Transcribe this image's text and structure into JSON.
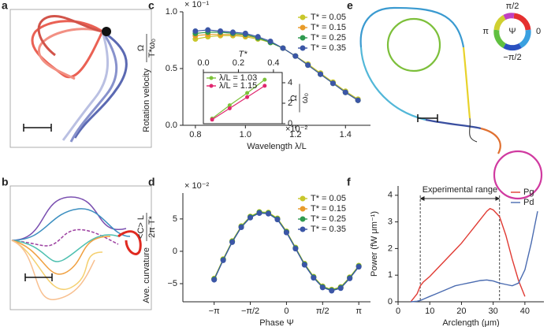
{
  "panel_labels": [
    "a",
    "b",
    "c",
    "d",
    "e",
    "f"
  ],
  "wheel": {
    "labels": [
      "π/2",
      "π",
      "0",
      "−π/2"
    ],
    "symbol": "Ψ"
  },
  "chart_data": [
    {
      "type": "line",
      "markers": true,
      "legend": "upper right",
      "xlabel": "Wavelength λ/L",
      "ylabel": "Rotation velocity",
      "ylabel_numerator": "Ω",
      "ylabel_denominator": "T*ω₀",
      "y_multiplier": "× 10⁻¹",
      "x": [
        0.8,
        0.85,
        0.9,
        0.95,
        1.0,
        1.05,
        1.1,
        1.15,
        1.2,
        1.25,
        1.3,
        1.35,
        1.4,
        1.45
      ],
      "series": [
        {
          "name": "T* = 0.05",
          "color": "#c8c72b",
          "values": [
            0.76,
            0.78,
            0.79,
            0.79,
            0.78,
            0.76,
            0.73,
            0.68,
            0.61,
            0.54,
            0.46,
            0.38,
            0.3,
            0.23
          ]
        },
        {
          "name": "T* = 0.15",
          "color": "#e89b2a",
          "values": [
            0.79,
            0.8,
            0.8,
            0.8,
            0.79,
            0.77,
            0.73,
            0.68,
            0.61,
            0.53,
            0.45,
            0.37,
            0.29,
            0.22
          ]
        },
        {
          "name": "T* = 0.25",
          "color": "#2f9a4f",
          "values": [
            0.81,
            0.82,
            0.82,
            0.81,
            0.8,
            0.77,
            0.73,
            0.68,
            0.61,
            0.53,
            0.45,
            0.37,
            0.29,
            0.22
          ]
        },
        {
          "name": "T* = 0.35",
          "color": "#3b56a6",
          "values": [
            0.83,
            0.84,
            0.83,
            0.82,
            0.81,
            0.78,
            0.74,
            0.68,
            0.61,
            0.53,
            0.45,
            0.37,
            0.29,
            0.22
          ]
        }
      ],
      "xlim": [
        0.75,
        1.5
      ],
      "ylim": [
        0,
        1
      ],
      "xticks": [
        {
          "value": 0.8,
          "label": "0.8"
        },
        {
          "value": 1.0,
          "label": "1.0"
        },
        {
          "value": 1.2,
          "label": "1.2"
        },
        {
          "value": 1.4,
          "label": "1.4"
        }
      ],
      "yticks": [
        {
          "value": 0,
          "label": "0.0"
        },
        0.5,
        {
          "value": 1,
          "label": "1.0"
        }
      ]
    },
    {
      "type": "line",
      "markers": true,
      "legend": "upper left",
      "xlabel": "T*",
      "ylabel_numerator": "Ω",
      "ylabel_denominator": "ω₀",
      "y_multiplier": "×10⁻²",
      "x": [
        0.05,
        0.15,
        0.25,
        0.35
      ],
      "series": [
        {
          "name": "λ/L = 1.03",
          "color": "#7cc23a",
          "values": [
            0.5,
            1.8,
            3.0,
            4.3
          ]
        },
        {
          "name": "λ/L = 1.15",
          "color": "#e0266e",
          "values": [
            0.4,
            1.5,
            2.6,
            3.7
          ]
        }
      ],
      "xlim": [
        0,
        0.45
      ],
      "ylim": [
        0,
        5
      ],
      "xticks": [
        {
          "value": 0,
          "label": "0.0"
        },
        0.2,
        0.4
      ],
      "yticks": [
        0,
        2,
        4
      ]
    },
    {
      "type": "line",
      "markers": true,
      "legend": "upper right",
      "xlabel": "Phase Ψ",
      "ylabel": "Ave. curvature",
      "ylabel_numerator": "<C> L",
      "ylabel_denominator": "2π T*",
      "y_multiplier": "× 10⁻²",
      "x": [
        -3.1416,
        -2.7489,
        -2.3562,
        -1.9635,
        -1.5708,
        -1.1781,
        -0.7854,
        -0.3927,
        0,
        0.3927,
        0.7854,
        1.1781,
        1.5708,
        1.9635,
        2.3562,
        2.7489,
        3.1416
      ],
      "series": [
        {
          "name": "T* = 0.05",
          "color": "#c8c72b",
          "values": [
            -4.2,
            -1.2,
            1.6,
            3.9,
            5.4,
            6.1,
            6.0,
            5.1,
            3.1,
            0.6,
            -1.9,
            -3.9,
            -5.4,
            -5.9,
            -5.5,
            -4.0,
            -2.2
          ]
        },
        {
          "name": "T* = 0.15",
          "color": "#e89b2a",
          "values": [
            -4.3,
            -1.3,
            1.5,
            3.8,
            5.3,
            6.0,
            5.9,
            5.0,
            3.0,
            0.5,
            -2.0,
            -4.0,
            -5.5,
            -6.0,
            -5.6,
            -4.1,
            -2.3
          ]
        },
        {
          "name": "T* = 0.25",
          "color": "#2f9a4f",
          "values": [
            -4.3,
            -1.3,
            1.5,
            3.8,
            5.3,
            6.0,
            5.9,
            5.0,
            3.0,
            0.5,
            -2.0,
            -4.0,
            -5.5,
            -6.0,
            -5.6,
            -4.1,
            -2.3
          ]
        },
        {
          "name": "T* = 0.35",
          "color": "#3b56a6",
          "values": [
            -4.4,
            -1.4,
            1.4,
            3.7,
            5.2,
            5.9,
            5.8,
            4.9,
            2.9,
            0.4,
            -2.1,
            -4.1,
            -5.6,
            -6.1,
            -5.7,
            -4.2,
            -2.4
          ]
        }
      ],
      "xlim": [
        -4.5,
        3.65
      ],
      "ylim": [
        -7.8,
        9
      ],
      "xticks": [
        {
          "value": -3.1416,
          "label": "−π"
        },
        {
          "value": -1.5708,
          "label": "−π/2"
        },
        0,
        {
          "value": 1.5708,
          "label": "π/2"
        },
        {
          "value": 3.1416,
          "label": "π"
        }
      ],
      "yticks": [
        {
          "value": -5,
          "label": "−5"
        },
        0,
        5
      ]
    },
    {
      "type": "line",
      "markers": false,
      "legend": "upper right",
      "xlabel": "Arclength (μm)",
      "ylabel": "Power (fW μm⁻¹)",
      "annotation": "Experimental range",
      "range": [
        7,
        32
      ],
      "x": [
        4,
        6,
        7,
        8,
        10,
        12,
        14,
        16,
        18,
        20,
        22,
        24,
        26,
        28,
        29,
        30,
        32,
        34,
        36,
        38,
        40,
        42,
        44
      ],
      "series": [
        {
          "name": "Pg",
          "color": "#e03a33",
          "values": [
            0,
            0.3,
            0.6,
            0.75,
            0.95,
            1.2,
            1.45,
            1.7,
            1.95,
            2.2,
            2.5,
            2.8,
            3.1,
            3.4,
            3.5,
            3.45,
            3.2,
            2.5,
            1.6,
            0.8,
            0.2,
            null,
            null
          ]
        },
        {
          "name": "Pd",
          "color": "#4a6bb0",
          "values": [
            0,
            0.02,
            0.05,
            0.1,
            0.2,
            0.3,
            0.4,
            0.5,
            0.6,
            0.65,
            0.7,
            0.75,
            0.8,
            0.82,
            0.8,
            0.78,
            0.7,
            0.65,
            0.6,
            0.7,
            1.2,
            2.2,
            3.4
          ]
        }
      ],
      "xlim": [
        0,
        46
      ],
      "ylim": [
        0,
        4.35
      ],
      "xticks": [
        0,
        10,
        20,
        30,
        40
      ],
      "yticks": [
        0,
        1,
        2,
        3,
        4
      ]
    }
  ]
}
